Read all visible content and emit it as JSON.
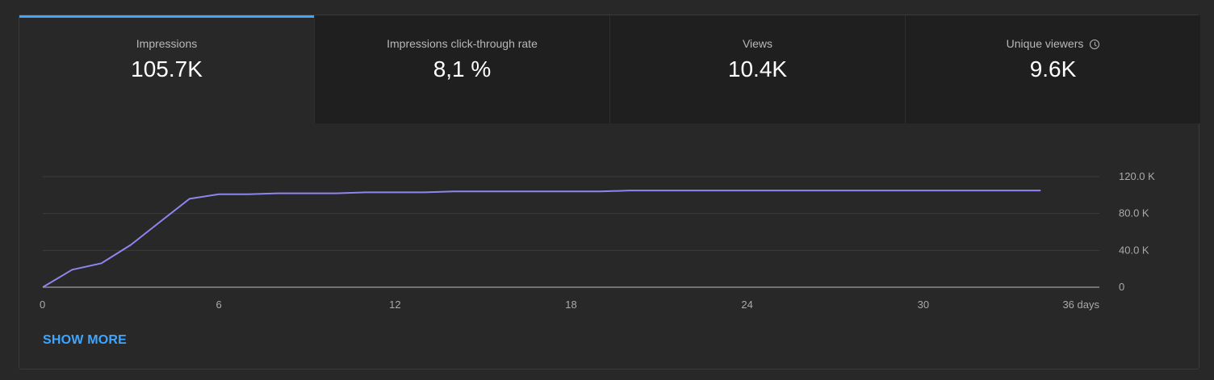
{
  "tabs": [
    {
      "label": "Impressions",
      "value": "105.7K",
      "active": true
    },
    {
      "label": "Impressions click-through rate",
      "value": "8,1 %",
      "active": false
    },
    {
      "label": "Views",
      "value": "10.4K",
      "active": false
    },
    {
      "label": "Unique viewers",
      "value": "9.6K",
      "active": false,
      "icon": "clock-icon"
    }
  ],
  "show_more_label": "SHOW MORE",
  "colors": {
    "line": "#8e86f0",
    "accent": "#3ea6ff",
    "background": "#282828",
    "tab_inactive": "#1f1f1f"
  },
  "chart_data": {
    "type": "line",
    "title": "",
    "xlabel": "",
    "ylabel": "",
    "xlim": [
      0,
      36
    ],
    "ylim": [
      0,
      120000
    ],
    "x_ticks": [
      0,
      6,
      12,
      18,
      24,
      30,
      36
    ],
    "x_tick_labels": [
      "0",
      "6",
      "12",
      "18",
      "24",
      "30",
      "36 days"
    ],
    "y_ticks": [
      0,
      40000,
      80000,
      120000
    ],
    "y_tick_labels": [
      "0",
      "40.0 K",
      "80.0 K",
      "120.0 K"
    ],
    "grid": true,
    "legend": "none",
    "series": [
      {
        "x": [
          0,
          1,
          2,
          3,
          4,
          5,
          6,
          7,
          8,
          9,
          10,
          11,
          12,
          13,
          14,
          15,
          16,
          17,
          18,
          19,
          20,
          21,
          22,
          23,
          24,
          25,
          26,
          27,
          28,
          29,
          30,
          31,
          32,
          33,
          34
        ],
        "y": [
          0,
          19000,
          26000,
          46000,
          71000,
          96000,
          101000,
          101000,
          102000,
          102000,
          102000,
          103000,
          103000,
          103000,
          104000,
          104000,
          104000,
          104000,
          104000,
          104000,
          105000,
          105000,
          105000,
          105000,
          105000,
          105000,
          105000,
          105000,
          105000,
          105000,
          105000,
          105000,
          105000,
          105000,
          105000
        ]
      }
    ]
  }
}
